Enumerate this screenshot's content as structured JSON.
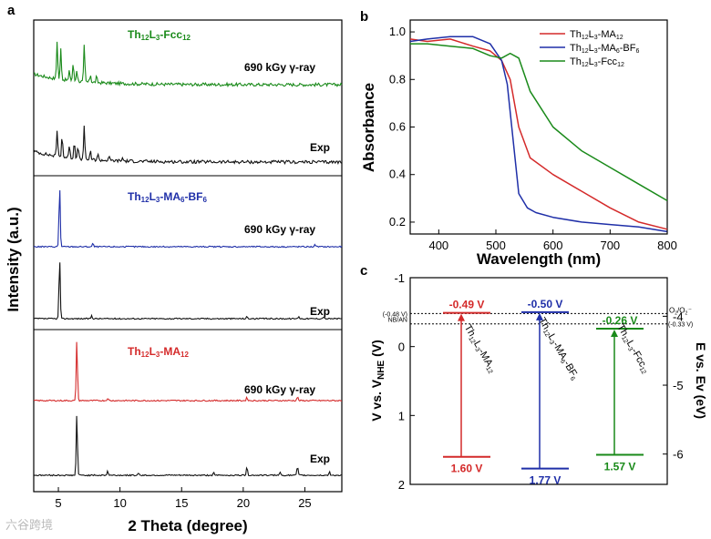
{
  "chart_data": [
    {
      "panel": "a",
      "type": "line",
      "xlabel": "2 Theta (degree)",
      "ylabel": "Intensity (a.u.)",
      "xlim": [
        3,
        28
      ],
      "xticks": [
        5,
        10,
        15,
        20,
        25
      ],
      "groups": [
        {
          "title_parts": [
            "Th",
            "12",
            "L",
            "3",
            "-Fcc",
            "12"
          ],
          "color": "#1a8a1a",
          "series": [
            {
              "name": "690 kGy γ-ray",
              "color": "#1a8a1a",
              "peaks": [
                [
                  4.9,
                  1.0
                ],
                [
                  5.2,
                  0.8
                ],
                [
                  5.9,
                  0.25
                ],
                [
                  6.2,
                  0.45
                ],
                [
                  6.5,
                  0.3
                ],
                [
                  7.1,
                  0.95
                ],
                [
                  7.6,
                  0.2
                ],
                [
                  8.1,
                  0.15
                ]
              ]
            },
            {
              "name": "Exp",
              "color": "#111111",
              "peaks": [
                [
                  4.9,
                  0.7
                ],
                [
                  5.3,
                  0.55
                ],
                [
                  5.9,
                  0.35
                ],
                [
                  6.3,
                  0.45
                ],
                [
                  6.6,
                  0.3
                ],
                [
                  7.1,
                  0.85
                ],
                [
                  7.6,
                  0.2
                ],
                [
                  8.2,
                  0.15
                ],
                [
                  9.1,
                  0.1
                ],
                [
                  10.2,
                  0.08
                ]
              ]
            }
          ]
        },
        {
          "title_parts": [
            "Th",
            "12",
            "L",
            "3",
            "-MA",
            "6",
            "-BF",
            "6"
          ],
          "color": "#1f2fa8",
          "series": [
            {
              "name": "690 kGy γ-ray",
              "color": "#1f2fa8",
              "peaks": [
                [
                  5.1,
                  1.0
                ],
                [
                  7.8,
                  0.05
                ],
                [
                  25.8,
                  0.03
                ]
              ]
            },
            {
              "name": "Exp",
              "color": "#111111",
              "peaks": [
                [
                  5.1,
                  1.0
                ],
                [
                  7.7,
                  0.05
                ],
                [
                  20.3,
                  0.03
                ],
                [
                  24.5,
                  0.04
                ],
                [
                  26.5,
                  0.03
                ]
              ]
            }
          ]
        },
        {
          "title_parts": [
            "Th",
            "12",
            "L",
            "3",
            "-MA",
            "12"
          ],
          "color": "#d42a2a",
          "series": [
            {
              "name": "690 kGy γ-ray",
              "color": "#d42a2a",
              "peaks": [
                [
                  6.5,
                  1.0
                ],
                [
                  9.0,
                  0.04
                ],
                [
                  20.3,
                  0.05
                ],
                [
                  24.4,
                  0.06
                ]
              ]
            },
            {
              "name": "Exp",
              "color": "#111111",
              "peaks": [
                [
                  6.5,
                  1.0
                ],
                [
                  9.0,
                  0.07
                ],
                [
                  11.5,
                  0.04
                ],
                [
                  17.6,
                  0.04
                ],
                [
                  20.3,
                  0.14
                ],
                [
                  23.0,
                  0.05
                ],
                [
                  24.4,
                  0.14
                ],
                [
                  27.0,
                  0.05
                ]
              ]
            }
          ]
        }
      ]
    },
    {
      "panel": "b",
      "type": "line",
      "xlabel": "Wavelength (nm)",
      "ylabel": "Absorbance",
      "xlim": [
        350,
        800
      ],
      "ylim": [
        0.15,
        1.05
      ],
      "xticks": [
        400,
        500,
        600,
        700,
        800
      ],
      "yticks": [
        0.2,
        0.4,
        0.6,
        0.8,
        1.0
      ],
      "series": [
        {
          "name_parts": [
            "Th",
            "12",
            "L",
            "3",
            "-MA",
            "12"
          ],
          "color": "#d42a2a",
          "x": [
            350,
            380,
            420,
            460,
            490,
            510,
            525,
            540,
            560,
            600,
            650,
            700,
            750,
            800
          ],
          "y": [
            0.97,
            0.96,
            0.97,
            0.94,
            0.92,
            0.88,
            0.8,
            0.6,
            0.47,
            0.4,
            0.33,
            0.26,
            0.2,
            0.17
          ]
        },
        {
          "name_parts": [
            "Th",
            "12",
            "L",
            "3",
            "-MA",
            "6",
            "-BF",
            "6"
          ],
          "color": "#1f2fa8",
          "x": [
            350,
            380,
            420,
            460,
            490,
            510,
            520,
            530,
            540,
            555,
            570,
            600,
            650,
            700,
            750,
            800
          ],
          "y": [
            0.96,
            0.97,
            0.98,
            0.98,
            0.95,
            0.88,
            0.78,
            0.55,
            0.32,
            0.26,
            0.24,
            0.22,
            0.2,
            0.19,
            0.18,
            0.16
          ]
        },
        {
          "name_parts": [
            "Th",
            "12",
            "L",
            "3",
            "-Fcc",
            "12"
          ],
          "color": "#1a8a1a",
          "x": [
            350,
            380,
            420,
            460,
            490,
            510,
            525,
            540,
            560,
            600,
            650,
            700,
            750,
            800
          ],
          "y": [
            0.95,
            0.95,
            0.94,
            0.93,
            0.9,
            0.89,
            0.91,
            0.89,
            0.75,
            0.6,
            0.5,
            0.43,
            0.36,
            0.29
          ]
        }
      ]
    },
    {
      "panel": "c",
      "type": "diagram",
      "ylabel_left": "V vs. V",
      "ylabel_left_sub": "NHE",
      "ylabel_left_suffix": " (V)",
      "ylabel_right": "E vs. Ev (eV)",
      "ylim_left": [
        -1,
        2
      ],
      "yticks_left": [
        -1,
        0,
        1,
        2
      ],
      "yticks_right": [
        -4,
        -5,
        -6
      ],
      "ref_lines": [
        {
          "value": -0.48,
          "label": "(-0.48 V)",
          "label2_parts": [
            "O",
            "2",
            "/O",
            "2",
            "·−"
          ]
        },
        {
          "value": -0.33,
          "label": "(-0.33 V)",
          "label2": "NB/AN"
        }
      ],
      "bands": [
        {
          "name_parts": [
            "Th",
            "12",
            "L",
            "3",
            "-MA",
            "12"
          ],
          "color": "#d42a2a",
          "cb": -0.49,
          "vb": 1.6,
          "cb_label": "-0.49 V",
          "vb_label": "1.60 V"
        },
        {
          "name_parts": [
            "Th",
            "12",
            "L",
            "3",
            "-MA",
            "6",
            "-BF",
            "6"
          ],
          "color": "#1f2fa8",
          "cb": -0.5,
          "vb": 1.77,
          "cb_label": "-0.50 V",
          "vb_label": "1.77 V"
        },
        {
          "name_parts": [
            "Th",
            "12",
            "L",
            "3",
            "-Fcc",
            "12"
          ],
          "color": "#1a8a1a",
          "cb": -0.26,
          "vb": 1.57,
          "cb_label": "-0.26 V",
          "vb_label": "1.57 V"
        }
      ]
    }
  ],
  "panel_labels": [
    "a",
    "b",
    "c"
  ],
  "watermark": "六谷跨境"
}
